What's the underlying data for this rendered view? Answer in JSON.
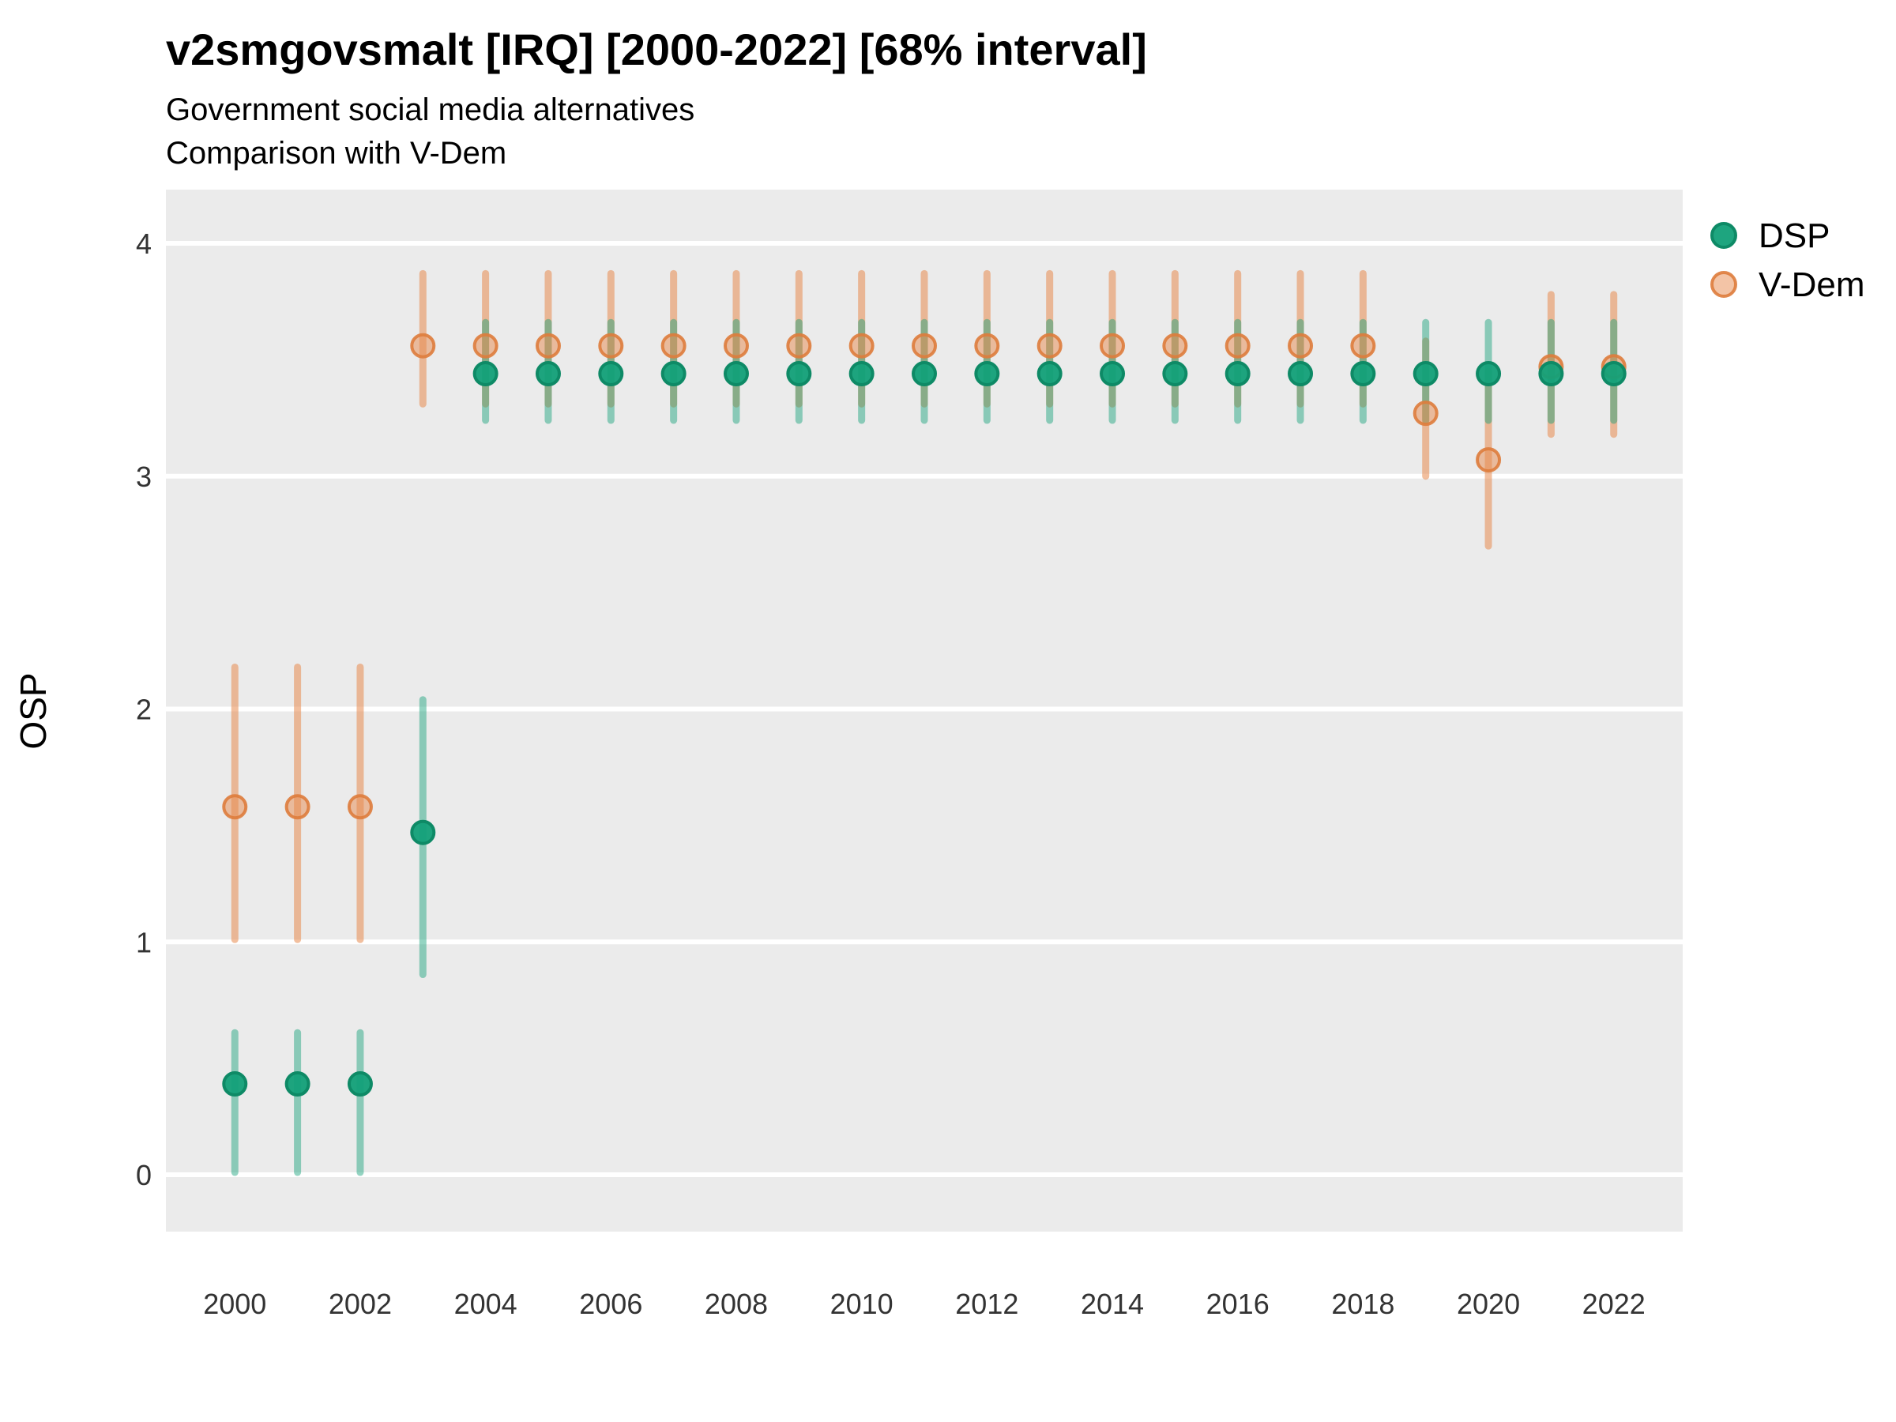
{
  "title": "v2smgovsmalt [IRQ] [2000-2022] [68% interval]",
  "subtitle_line1": "Government social media alternatives",
  "subtitle_line2": "Comparison with V-Dem",
  "ylabel": "OSP",
  "legend": {
    "items": [
      {
        "label": "DSP",
        "color": "#12A078"
      },
      {
        "label": "V-Dem",
        "color": "#E78A4E"
      }
    ]
  },
  "colors": {
    "panel_bg": "#EBEBEB",
    "gridline": "#FFFFFF",
    "dsp_base": "#12A078",
    "dsp_point_stroke": "#0E8A66",
    "vdem_base": "#E78A4E",
    "vdem_point_stroke": "#DE7C3C",
    "title_text": "#000000",
    "tick_text": "#333333"
  },
  "chart_data": {
    "type": "scatter",
    "title": "v2smgovsmalt [IRQ] [2000-2022] [68% interval]",
    "subtitle": "Government social media alternatives / Comparison with V-Dem",
    "xlabel": "",
    "ylabel": "OSP",
    "interval_level": "68%",
    "ylim": [
      0,
      4
    ],
    "yticks": [
      0,
      1,
      2,
      3,
      4
    ],
    "xticks": [
      2000,
      2002,
      2004,
      2006,
      2008,
      2010,
      2012,
      2014,
      2016,
      2018,
      2020,
      2022
    ],
    "grid": "major-horizontal-only",
    "legend_position": "right",
    "x": [
      2000,
      2001,
      2002,
      2003,
      2004,
      2005,
      2006,
      2007,
      2008,
      2009,
      2010,
      2011,
      2012,
      2013,
      2014,
      2015,
      2016,
      2017,
      2018,
      2019,
      2020,
      2021,
      2022
    ],
    "series": [
      {
        "name": "V-Dem",
        "values": [
          1.58,
          1.58,
          1.58,
          3.56,
          3.56,
          3.56,
          3.56,
          3.56,
          3.56,
          3.56,
          3.56,
          3.56,
          3.56,
          3.56,
          3.56,
          3.56,
          3.56,
          3.56,
          3.56,
          3.27,
          3.07,
          3.47,
          3.47
        ],
        "lower": [
          1.01,
          1.01,
          1.01,
          3.31,
          3.31,
          3.31,
          3.31,
          3.31,
          3.31,
          3.31,
          3.31,
          3.31,
          3.31,
          3.31,
          3.31,
          3.31,
          3.31,
          3.31,
          3.31,
          3.0,
          2.7,
          3.18,
          3.18
        ],
        "upper": [
          2.18,
          2.18,
          2.18,
          3.87,
          3.87,
          3.87,
          3.87,
          3.87,
          3.87,
          3.87,
          3.87,
          3.87,
          3.87,
          3.87,
          3.87,
          3.87,
          3.87,
          3.87,
          3.87,
          3.58,
          3.45,
          3.78,
          3.78
        ]
      },
      {
        "name": "DSP",
        "values": [
          0.39,
          0.39,
          0.39,
          1.47,
          3.44,
          3.44,
          3.44,
          3.44,
          3.44,
          3.44,
          3.44,
          3.44,
          3.44,
          3.44,
          3.44,
          3.44,
          3.44,
          3.44,
          3.44,
          3.44,
          3.44,
          3.44,
          3.44
        ],
        "lower": [
          0.01,
          0.01,
          0.01,
          0.86,
          3.24,
          3.24,
          3.24,
          3.24,
          3.24,
          3.24,
          3.24,
          3.24,
          3.24,
          3.24,
          3.24,
          3.24,
          3.24,
          3.24,
          3.24,
          3.24,
          3.24,
          3.24,
          3.24
        ],
        "upper": [
          0.61,
          0.61,
          0.61,
          2.04,
          3.66,
          3.66,
          3.66,
          3.66,
          3.66,
          3.66,
          3.66,
          3.66,
          3.66,
          3.66,
          3.66,
          3.66,
          3.66,
          3.66,
          3.66,
          3.66,
          3.66,
          3.66,
          3.66
        ]
      }
    ]
  }
}
